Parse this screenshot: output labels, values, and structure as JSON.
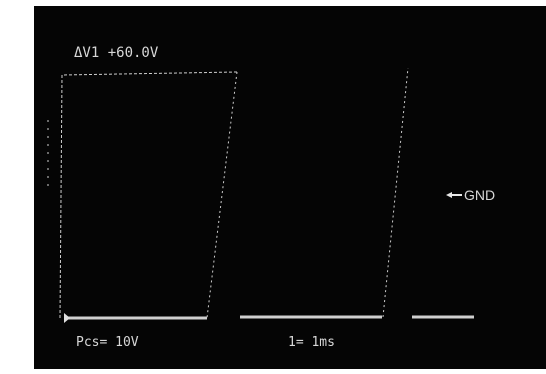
{
  "screen": {
    "readout_top": "ΔV1 +60.0V",
    "ground_marker": "GND",
    "volts_per_div": "Pcs= 10V",
    "time_per_div": "1= 1ms"
  }
}
